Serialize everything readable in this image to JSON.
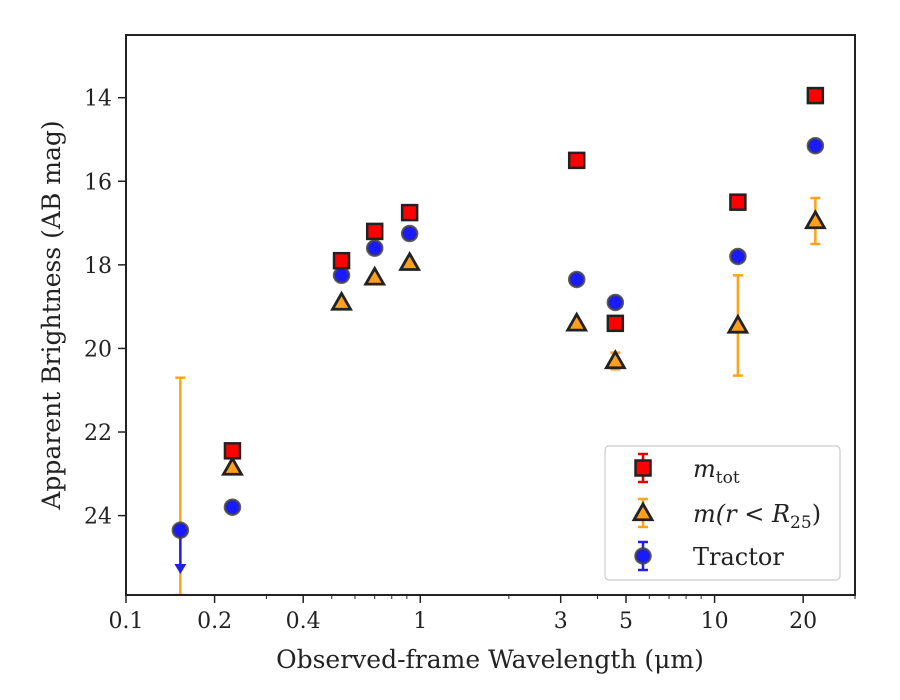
{
  "chart_data": {
    "type": "scatter",
    "title": "",
    "xlabel": "Observed-frame Wavelength (μm)",
    "ylabel": "Apparent Brightness (AB mag)",
    "xscale": "log",
    "xlim": [
      0.1,
      30
    ],
    "ylim": [
      25.9,
      12.5
    ],
    "y_inverted": true,
    "x_ticks": [
      0.1,
      0.2,
      0.4,
      1,
      3,
      5,
      10,
      20
    ],
    "x_tick_labels": [
      "0.1",
      "0.2",
      "0.4",
      "1",
      "3",
      "5",
      "10",
      "20"
    ],
    "y_ticks": [
      14,
      16,
      18,
      20,
      22,
      24
    ],
    "y_tick_labels": [
      "14",
      "16",
      "18",
      "20",
      "22",
      "24"
    ],
    "grid": false,
    "legend_position": "lower-right",
    "series": [
      {
        "name_base": "m",
        "name_sub": "tot",
        "marker": "square",
        "color": "#ff0000",
        "edge_color": "#222222",
        "errorbar_color": "#dd0000",
        "x": [
          0.23,
          0.54,
          0.7,
          0.92,
          3.4,
          4.6,
          12.0,
          22.0
        ],
        "y": [
          22.45,
          17.9,
          17.2,
          16.75,
          15.5,
          19.4,
          16.5,
          13.95
        ],
        "yerr": [
          0.05,
          0.05,
          0.05,
          0.05,
          0.05,
          0.05,
          0.05,
          0.05
        ]
      },
      {
        "name_base": "m",
        "name_rest": "(r < R",
        "name_sub": "25",
        "name_end": ")",
        "marker": "triangle",
        "color": "#ff9f1c",
        "edge_color": "#222222",
        "errorbar_color": "#ffa31a",
        "x": [
          0.23,
          0.54,
          0.7,
          0.92,
          3.4,
          4.6,
          12.0,
          22.0
        ],
        "y": [
          22.85,
          18.9,
          18.3,
          17.95,
          19.4,
          20.3,
          19.45,
          16.95
        ],
        "yerr": [
          0.05,
          0.05,
          0.05,
          0.05,
          0.05,
          0.2,
          1.2,
          0.55
        ]
      },
      {
        "name": "Tractor",
        "marker": "circle",
        "color": "#1a1aff",
        "edge_color": "#444444",
        "errorbar_color": "#2222dd",
        "x": [
          0.23,
          0.54,
          0.7,
          0.92,
          3.4,
          4.6,
          12.0,
          22.0
        ],
        "y": [
          23.8,
          18.25,
          17.6,
          17.25,
          18.35,
          18.9,
          17.8,
          15.15
        ],
        "yerr": [
          0.05,
          0.05,
          0.05,
          0.05,
          0.05,
          0.05,
          0.05,
          0.05
        ]
      }
    ],
    "upper_limit_point": {
      "x": 0.153,
      "y": 24.35,
      "marker": "circle",
      "color": "#1a1aff",
      "arrow_color": "#2222dd",
      "arrow_to": 25.35,
      "errorbar_color": "#ffa31a",
      "errorbar_range": [
        20.7,
        25.9
      ]
    }
  }
}
